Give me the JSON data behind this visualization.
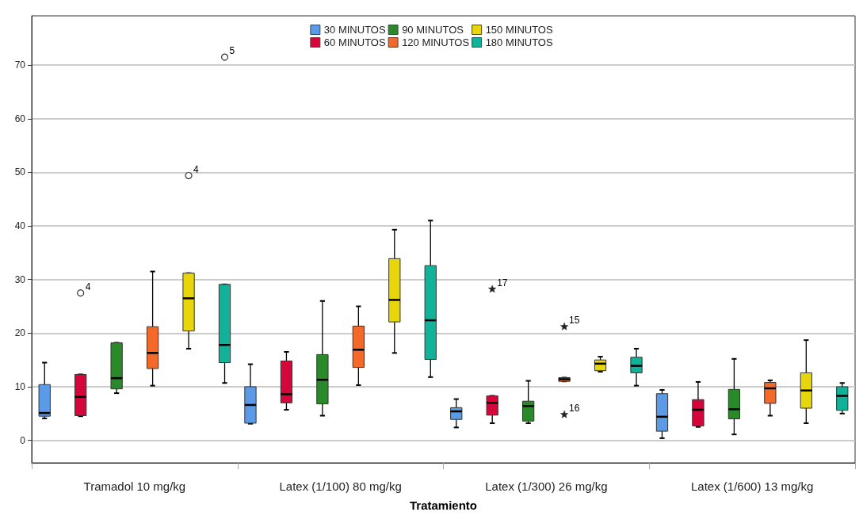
{
  "chart_data": {
    "type": "box",
    "xlabel": "Tratamiento",
    "categories": [
      "Tramadol 10 mg/kg",
      "Latex (1/100) 80 mg/kg",
      "Latex (1/300) 26 mg/kg",
      "Latex (1/600) 13 mg/kg"
    ],
    "ylim": [
      -4.2,
      79.2
    ],
    "yticks": [
      0,
      10,
      20,
      30,
      40,
      50,
      60,
      70
    ],
    "grid": "y",
    "legend": "top",
    "series": [
      {
        "name": "30 MINUTOS",
        "color": "#5b9ae6",
        "boxes": [
          {
            "low": 4.1,
            "q1": 4.5,
            "median": 5.1,
            "q3": 10.4,
            "high": 14.5
          },
          {
            "low": 3.1,
            "q1": 3.2,
            "median": 6.6,
            "q3": 10.0,
            "high": 14.2
          },
          {
            "low": 2.4,
            "q1": 3.9,
            "median": 5.4,
            "q3": 6.1,
            "high": 7.7
          },
          {
            "low": 0.4,
            "q1": 1.7,
            "median": 4.4,
            "q3": 8.7,
            "high": 9.4
          }
        ]
      },
      {
        "name": "60 MINUTOS",
        "color": "#d6063a",
        "boxes": [
          {
            "low": 4.5,
            "q1": 4.6,
            "median": 8.1,
            "q3": 12.3,
            "high": 12.3,
            "outliers": [
              27.5
            ]
          },
          {
            "low": 5.7,
            "q1": 7.0,
            "median": 8.6,
            "q3": 14.8,
            "high": 16.5
          },
          {
            "low": 3.2,
            "q1": 4.7,
            "median": 7.0,
            "q3": 8.3,
            "high": 8.3,
            "outliers": [
              28.2
            ]
          },
          {
            "low": 2.5,
            "q1": 2.7,
            "median": 5.7,
            "q3": 7.6,
            "high": 10.9
          }
        ]
      },
      {
        "name": "90 MINUTOS",
        "color": "#2a8a2a",
        "boxes": [
          {
            "low": 8.8,
            "q1": 9.6,
            "median": 11.6,
            "q3": 18.2,
            "high": 18.2
          },
          {
            "low": 4.6,
            "q1": 6.8,
            "median": 11.3,
            "q3": 16.0,
            "high": 26.0
          },
          {
            "low": 3.2,
            "q1": 3.6,
            "median": 6.4,
            "q3": 7.3,
            "high": 11.1
          },
          {
            "low": 1.1,
            "q1": 4.0,
            "median": 5.8,
            "q3": 9.5,
            "high": 15.2
          }
        ]
      },
      {
        "name": "120 MINUTOS",
        "color": "#f2692a",
        "boxes": [
          {
            "low": 10.2,
            "q1": 13.4,
            "median": 16.3,
            "q3": 21.2,
            "high": 31.5
          },
          {
            "low": 10.3,
            "q1": 13.6,
            "median": 16.9,
            "q3": 21.3,
            "high": 25.0
          },
          {
            "low": 11.0,
            "q1": 11.0,
            "median": 11.4,
            "q3": 11.7,
            "high": 11.7,
            "outliers": [
              21.2,
              4.8
            ]
          },
          {
            "low": 4.6,
            "q1": 6.9,
            "median": 9.7,
            "q3": 10.8,
            "high": 11.2
          }
        ]
      },
      {
        "name": "150 MINUTOS",
        "color": "#e6d60a",
        "boxes": [
          {
            "low": 17.1,
            "q1": 20.4,
            "median": 26.5,
            "q3": 31.2,
            "high": 31.2,
            "outliers": [
              49.4
            ]
          },
          {
            "low": 16.3,
            "q1": 22.1,
            "median": 26.2,
            "q3": 33.9,
            "high": 39.3
          },
          {
            "low": 12.8,
            "q1": 13.0,
            "median": 14.3,
            "q3": 15.0,
            "high": 15.6
          },
          {
            "low": 3.2,
            "q1": 6.0,
            "median": 9.3,
            "q3": 12.6,
            "high": 18.7
          }
        ]
      },
      {
        "name": "180 MINUTOS",
        "color": "#12b29a",
        "boxes": [
          {
            "low": 10.7,
            "q1": 14.5,
            "median": 17.8,
            "q3": 29.1,
            "high": 29.1,
            "outliers": [
              71.5
            ]
          },
          {
            "low": 11.8,
            "q1": 15.1,
            "median": 22.4,
            "q3": 32.6,
            "high": 41.0
          },
          {
            "low": 10.2,
            "q1": 12.6,
            "median": 13.9,
            "q3": 15.5,
            "high": 17.1
          },
          {
            "low": 5.0,
            "q1": 5.6,
            "median": 8.3,
            "q3": 10.0,
            "high": 10.7
          }
        ]
      }
    ],
    "annotations": [
      "4",
      "17",
      "15",
      "16",
      "4",
      "5"
    ]
  }
}
